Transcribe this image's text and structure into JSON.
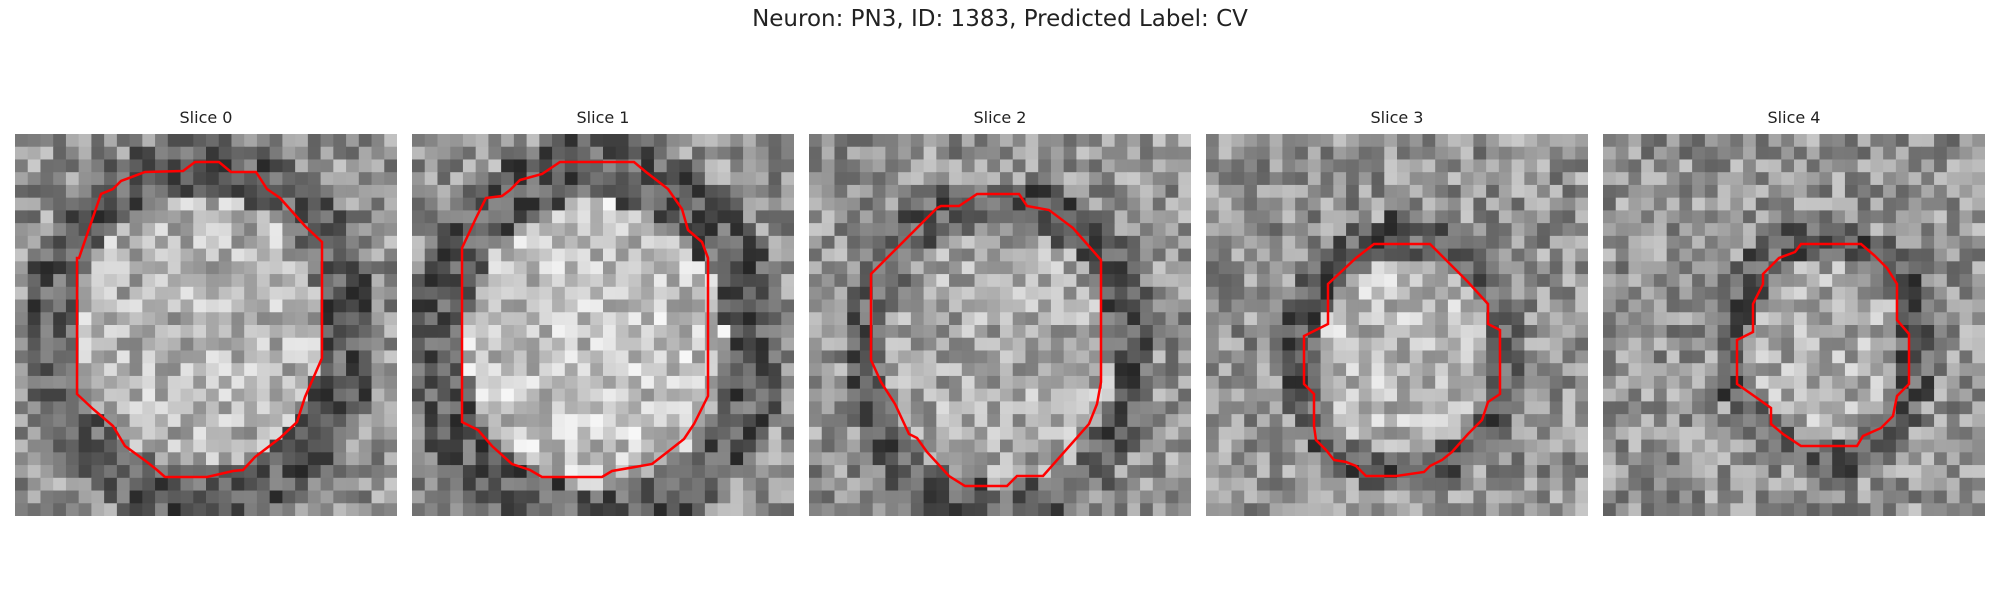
{
  "figure": {
    "title": "Neuron: PN3, ID: 1383, Predicted Label: CV"
  },
  "contour_color": "#ff0000",
  "panels": [
    {
      "title": "Slice 0",
      "seed": 11
    },
    {
      "title": "Slice 1",
      "seed": 23
    },
    {
      "title": "Slice 2",
      "seed": 37
    },
    {
      "title": "Slice 3",
      "seed": 51
    },
    {
      "title": "Slice 4",
      "seed": 67
    }
  ]
}
